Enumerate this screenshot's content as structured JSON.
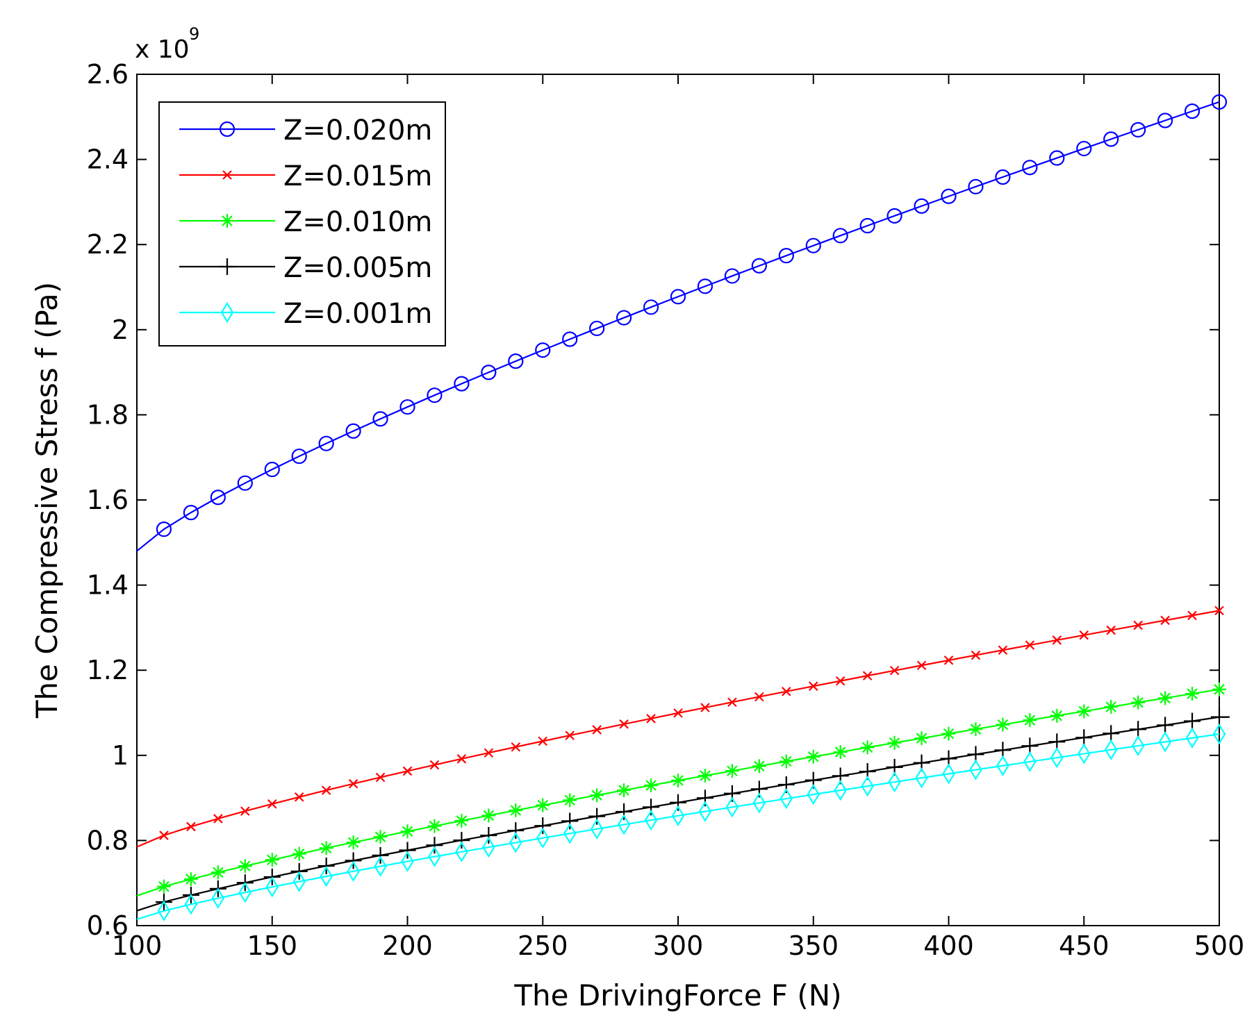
{
  "chart_data": {
    "type": "line",
    "title": "",
    "xlabel": "The DrivingForce F (N)",
    "ylabel": "The Compressive Stress f (Pa)",
    "y_scale_label": "x 10",
    "y_scale_exponent": "9",
    "xlim": [
      100,
      500
    ],
    "ylim": [
      0.6,
      2.6
    ],
    "x_ticks": [
      100,
      150,
      200,
      250,
      300,
      350,
      400,
      450,
      500
    ],
    "x_tick_labels": [
      "100",
      "150",
      "200",
      "250",
      "300",
      "350",
      "400",
      "450",
      "500"
    ],
    "y_ticks": [
      0.6,
      0.8,
      1.0,
      1.2,
      1.4,
      1.6,
      1.8,
      2.0,
      2.2,
      2.4,
      2.6
    ],
    "y_tick_labels": [
      "0.6",
      "0.8",
      "1",
      "1.2",
      "1.4",
      "1.6",
      "1.8",
      "2",
      "2.2",
      "2.4",
      "2.6"
    ],
    "grid": false,
    "legend_position": "top-left",
    "x_start": 100,
    "x_end": 500,
    "x_step": 10,
    "series": [
      {
        "name": "Z=0.020m",
        "color": "#0000ff",
        "marker": "circle",
        "y_at_start": 1.48,
        "y_at_end": 2.535,
        "curve_exponent": 0.82
      },
      {
        "name": "Z=0.015m",
        "color": "#ff0000",
        "marker": "x",
        "y_at_start": 0.785,
        "y_at_end": 1.34,
        "curve_exponent": 0.82
      },
      {
        "name": "Z=0.010m",
        "color": "#00ff00",
        "marker": "star",
        "y_at_start": 0.67,
        "y_at_end": 1.155,
        "curve_exponent": 0.84
      },
      {
        "name": "Z=0.005m",
        "color": "#000000",
        "marker": "plus",
        "y_at_start": 0.635,
        "y_at_end": 1.09,
        "curve_exponent": 0.84
      },
      {
        "name": "Z=0.001m",
        "color": "#00ffff",
        "marker": "diamond",
        "y_at_start": 0.615,
        "y_at_end": 1.05,
        "curve_exponent": 0.84
      }
    ]
  }
}
